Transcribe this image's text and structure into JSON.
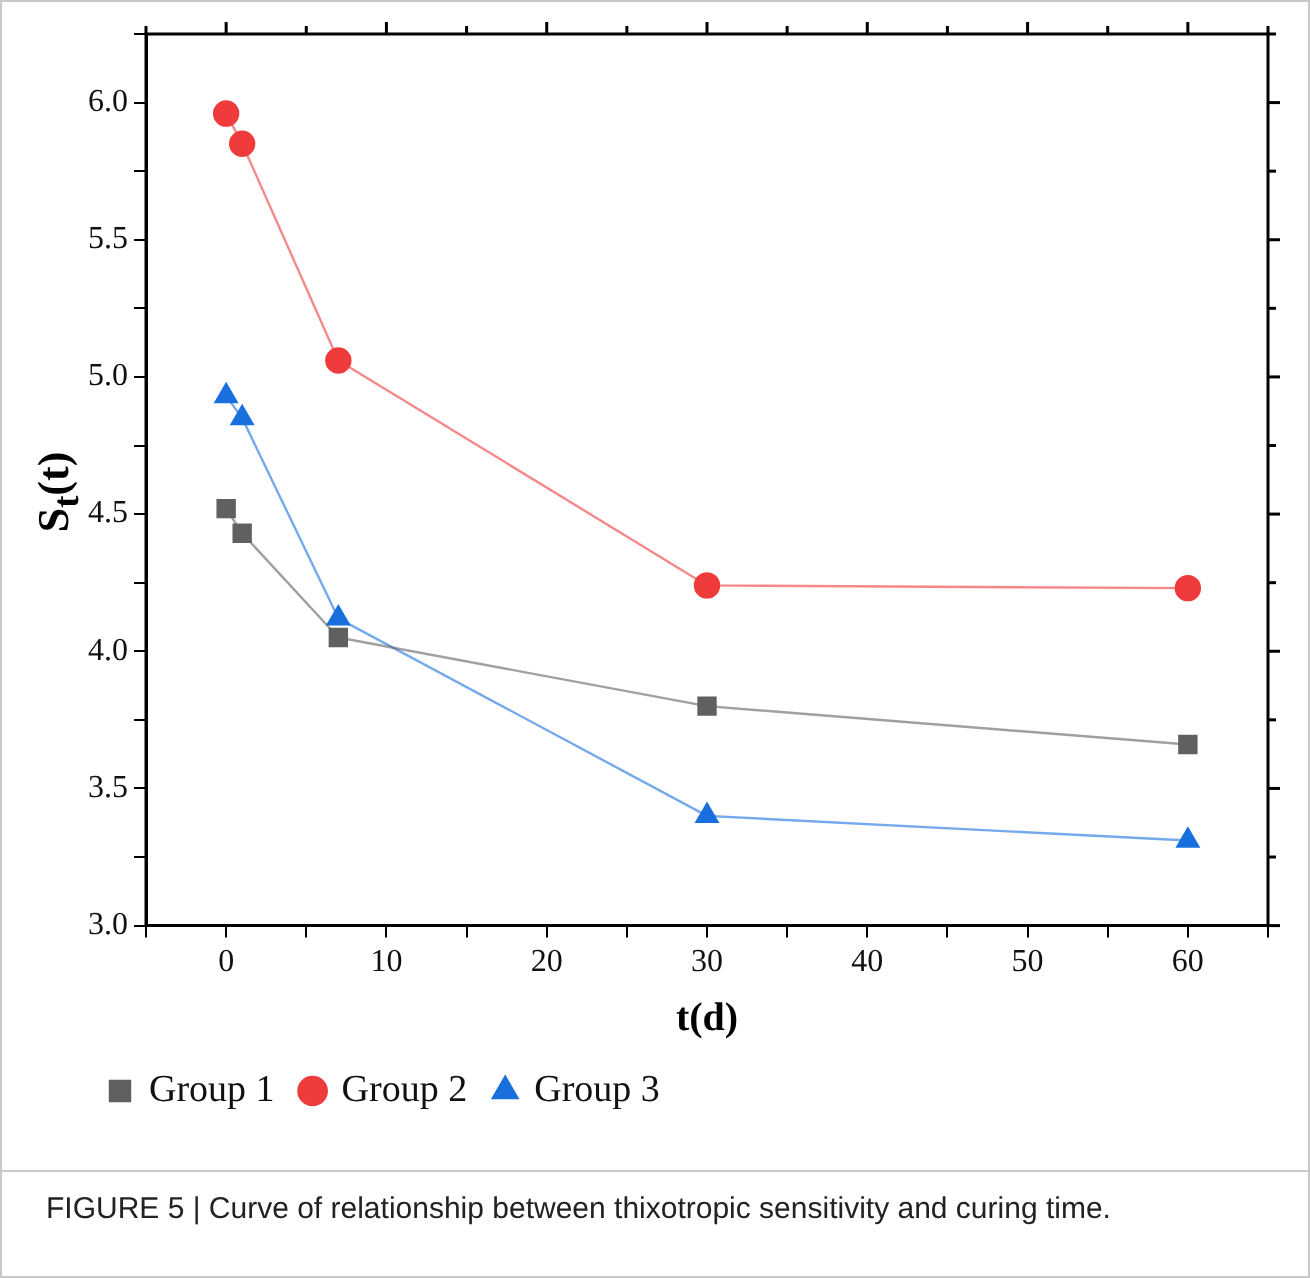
{
  "chart_data": {
    "type": "line",
    "xlabel": "t(d)",
    "ylabel": "S$_{t}$(t)",
    "xlim": [
      -5,
      65
    ],
    "xticks": [
      {
        "value": -5,
        "label": null
      },
      0,
      {
        "value": 5,
        "label": null
      },
      10,
      {
        "value": 15,
        "label": null
      },
      20,
      {
        "value": 25,
        "label": null
      },
      30,
      {
        "value": 35,
        "label": null
      },
      40,
      {
        "value": 45,
        "label": null
      },
      50,
      {
        "value": 55,
        "label": null
      },
      60,
      {
        "value": 65,
        "label": null
      }
    ],
    "ylim": [
      3,
      6.25
    ],
    "yticks": [
      {
        "value": 3,
        "label": "3.0"
      },
      {
        "value": 3.25,
        "label": null
      },
      {
        "value": 3.5,
        "label": "3.5"
      },
      {
        "value": 3.75,
        "label": null
      },
      {
        "value": 4,
        "label": "4.0"
      },
      {
        "value": 4.25,
        "label": null
      },
      {
        "value": 4.5,
        "label": "4.5"
      },
      {
        "value": 4.75,
        "label": null
      },
      {
        "value": 5,
        "label": "5.0"
      },
      {
        "value": 5.25,
        "label": null
      },
      {
        "value": 5.5,
        "label": "5.5"
      },
      {
        "value": 5.75,
        "label": null
      },
      {
        "value": 6,
        "label": "6.0"
      },
      {
        "value": 6.25,
        "label": null
      }
    ],
    "x": [
      0,
      1,
      7,
      30,
      60
    ],
    "series": [
      {
        "name": "Group 1",
        "color": "#606060",
        "marker": "square",
        "values": [
          4.52,
          4.43,
          4.05,
          3.8,
          3.66
        ]
      },
      {
        "name": "Group 2",
        "color": "#ef3b3b",
        "marker": "circle",
        "values": [
          5.96,
          5.85,
          5.06,
          4.24,
          4.23
        ]
      },
      {
        "name": "Group 3",
        "color": "#1a6fdf",
        "marker": "triangle",
        "values": [
          4.93,
          4.85,
          4.12,
          3.4,
          3.31
        ]
      }
    ],
    "grid": false,
    "legend": "bottom",
    "line_style": "solid",
    "annotations": [
      "FIGURE 5 | Curve of relationship between thixotropic sensitivity and curing time."
    ]
  }
}
